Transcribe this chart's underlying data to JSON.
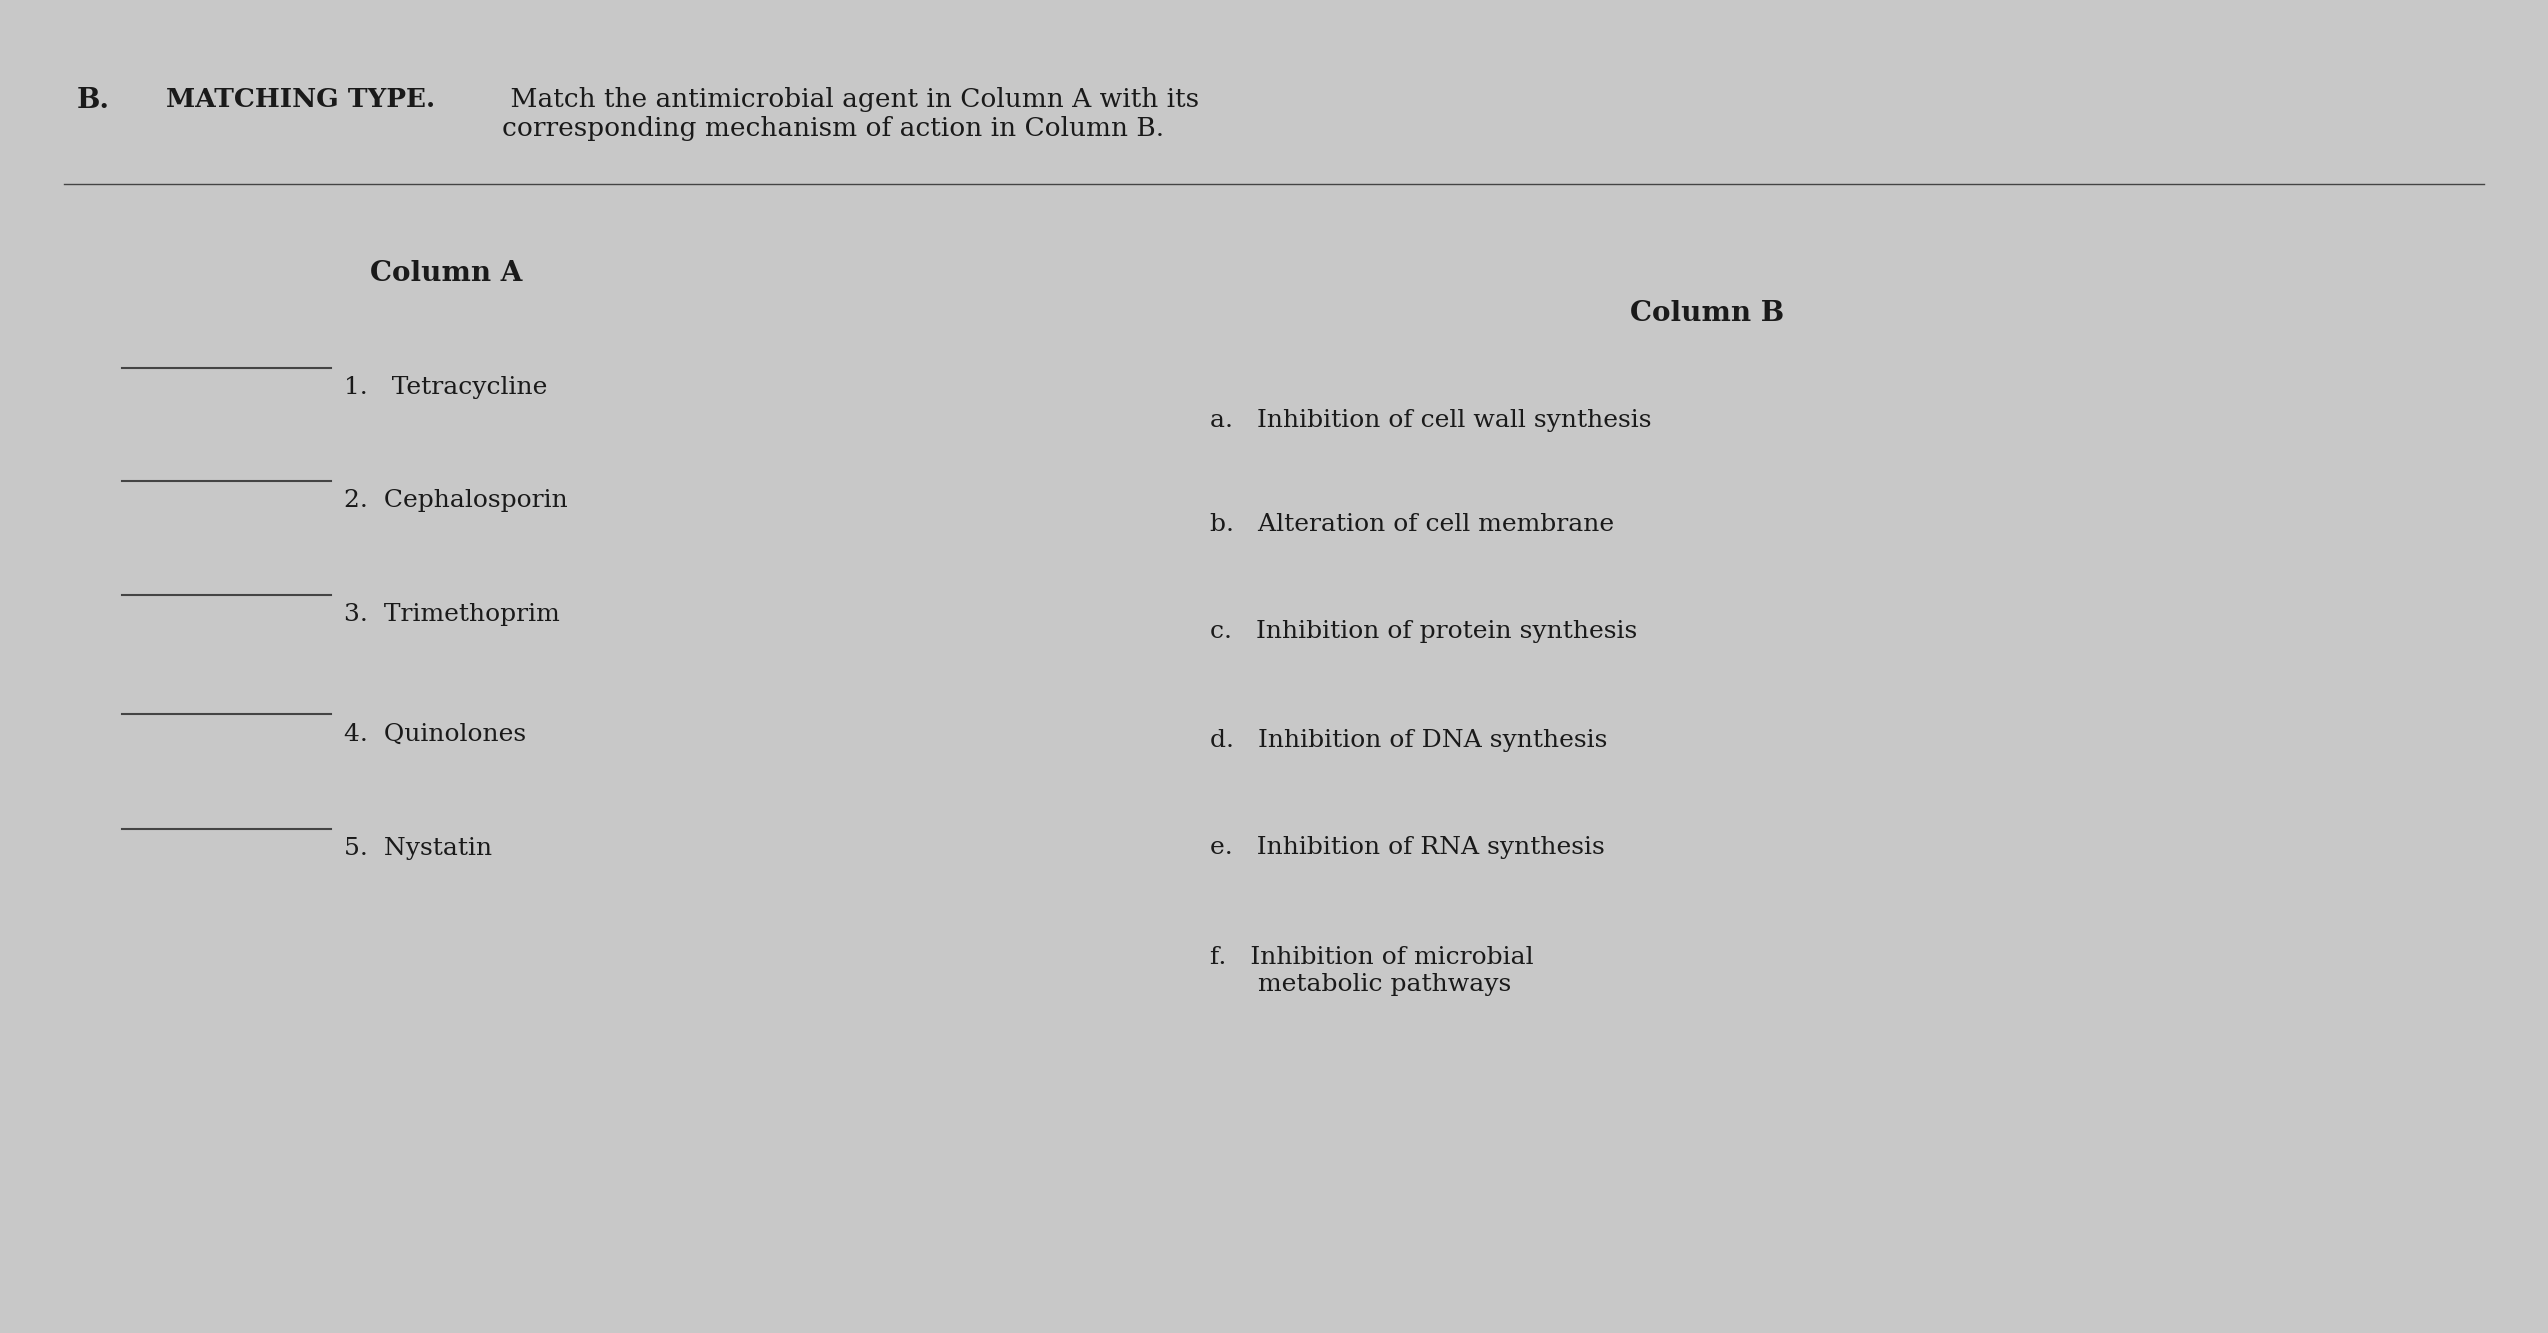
{
  "background_color": "#c8c8c8",
  "title_bold": "MATCHING TYPE.",
  "title_normal": " Match the antimicrobial agent in Column A with its\ncorresponding mechanism of action in Column B.",
  "col_a_header": "Column A",
  "col_b_header": "Column B",
  "col_a_items": [
    "1.   Tetracycline",
    "2.  Cephalosporin",
    "3.  Trimethoprim",
    "4.  Quinolones",
    "5.  Nystatin"
  ],
  "col_b_items": [
    "a.   Inhibition of cell wall synthesis",
    "b.   Alteration of cell membrane",
    "c.   Inhibition of protein synthesis",
    "d.   Inhibition of DNA synthesis",
    "e.   Inhibition of RNA synthesis",
    "f.   Inhibition of microbial\n      metabolic pathways"
  ],
  "section_label": "B.",
  "text_color": "#1a1a1a",
  "line_color": "#444444",
  "font_size_title": 19,
  "font_size_header": 20,
  "font_size_body": 18,
  "font_size_section": 20
}
